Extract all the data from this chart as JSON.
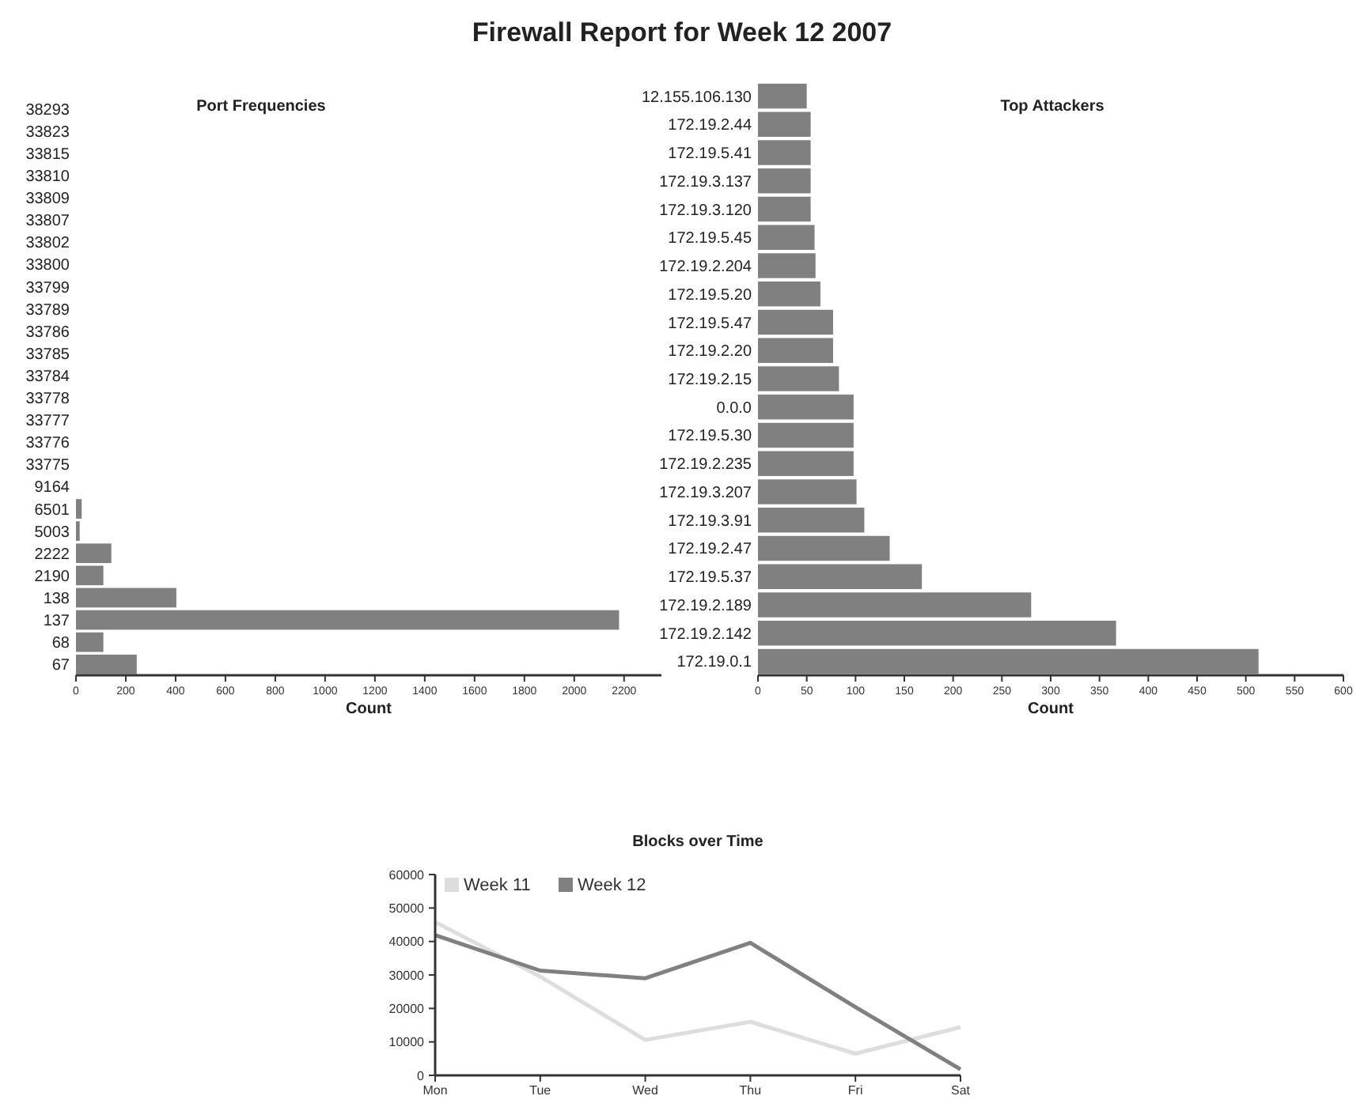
{
  "chart_data": [
    {
      "type": "bar",
      "orientation": "horizontal",
      "title": "Port Frequencies",
      "xlabel": "Count",
      "annotations": [
        "Firewall Report for Week 12 2007"
      ],
      "categories": [
        "38293",
        "33823",
        "33815",
        "33810",
        "33809",
        "33807",
        "33802",
        "33800",
        "33799",
        "33789",
        "33786",
        "33785",
        "33784",
        "33778",
        "33777",
        "33776",
        "33775",
        "9164",
        "6501",
        "5003",
        "2222",
        "2190",
        "138",
        "137",
        "68",
        "67"
      ],
      "values": [
        0,
        0,
        0,
        0,
        0,
        0,
        0,
        0,
        0,
        0,
        0,
        0,
        0,
        0,
        0,
        0,
        0,
        0,
        23,
        15,
        142,
        110,
        403,
        2180,
        110,
        244
      ],
      "color": "#808080",
      "xlim": [
        0,
        2350
      ],
      "xticks": [
        0,
        200,
        400,
        600,
        800,
        1000,
        1200,
        1400,
        1600,
        1800,
        2000,
        2200
      ],
      "grid": false
    },
    {
      "type": "bar",
      "orientation": "horizontal",
      "title": "Top Attackers",
      "xlabel": "Count",
      "categories": [
        "12.155.106.130",
        "172.19.2.44",
        "172.19.5.41",
        "172.19.3.137",
        "172.19.3.120",
        "172.19.5.45",
        "172.19.2.204",
        "172.19.5.20",
        "172.19.5.47",
        "172.19.2.20",
        "172.19.2.15",
        "0.0.0",
        "172.19.5.30",
        "172.19.2.235",
        "172.19.3.207",
        "172.19.3.91",
        "172.19.2.47",
        "172.19.5.37",
        "172.19.2.189",
        "172.19.2.142",
        "172.19.0.1"
      ],
      "values": [
        50,
        54,
        54,
        54,
        54,
        58,
        59,
        64,
        77,
        77,
        83,
        98,
        98,
        98,
        101,
        109,
        135,
        168,
        280,
        367,
        513
      ],
      "color": "#808080",
      "xlim": [
        0,
        600
      ],
      "xticks": [
        0,
        50,
        100,
        150,
        200,
        250,
        300,
        350,
        400,
        450,
        500,
        550,
        600
      ],
      "grid": false
    },
    {
      "type": "line",
      "title": "Blocks over Time",
      "categories": [
        "Mon",
        "Tue",
        "Wed",
        "Thu",
        "Fri",
        "Sat"
      ],
      "series": [
        {
          "name": "Week 11",
          "color": "#dddddd",
          "values": [
            45800,
            29500,
            10600,
            16000,
            6500,
            14400
          ]
        },
        {
          "name": "Week 12",
          "color": "#808080",
          "values": [
            41900,
            31300,
            29000,
            39600,
            20400,
            1800
          ]
        }
      ],
      "ylim": [
        0,
        60000
      ],
      "yticks": [
        0,
        10000,
        20000,
        30000,
        40000,
        50000,
        60000
      ],
      "grid": false,
      "legend": "top left",
      "marker": "none",
      "line_style": "solid"
    }
  ]
}
